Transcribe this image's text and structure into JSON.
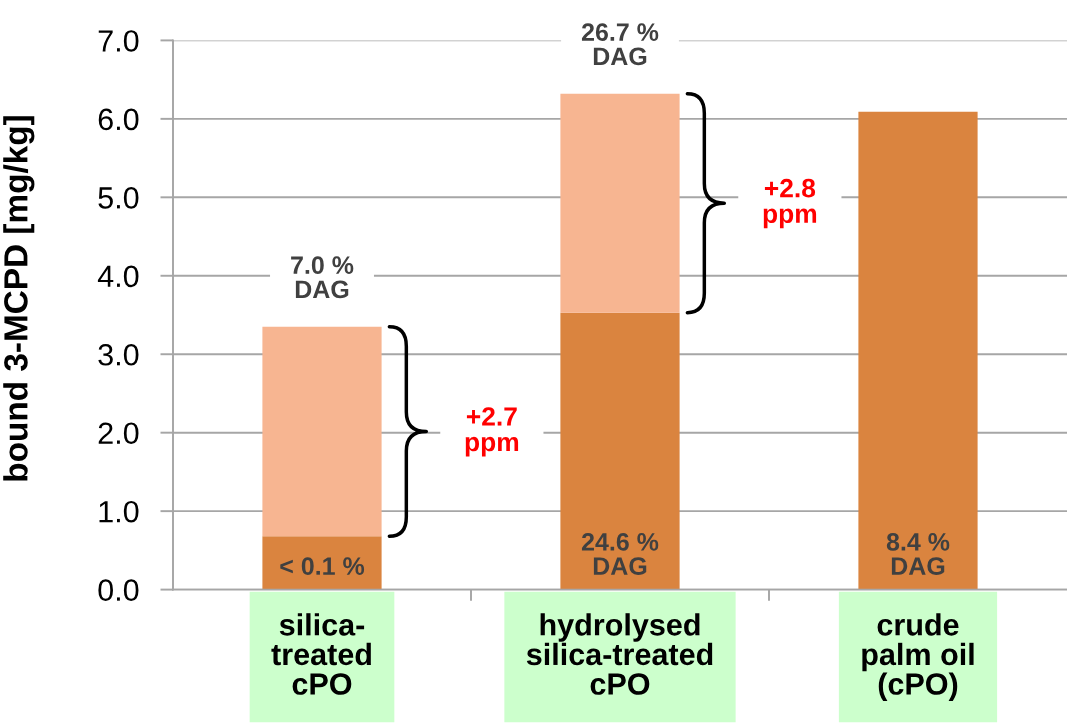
{
  "chart_data": {
    "type": "bar",
    "stacked": true,
    "ylabel": "bound 3-MCPD [mg/kg]",
    "categories": [
      "silica-\ntreated\ncPO",
      "hydrolysed\nsilica-treated\ncPO",
      "crude\npalm oil\n(cPO)"
    ],
    "series": [
      {
        "color": "#da843f",
        "values": [
          0.68,
          3.53,
          6.09
        ]
      },
      {
        "color": "#f7b591",
        "values": [
          2.67,
          2.79,
          null
        ]
      }
    ],
    "ylim": [
      0,
      7
    ],
    "yticks": [
      {
        "value": 0,
        "label": "0.0"
      },
      {
        "value": 1,
        "label": "1.0"
      },
      {
        "value": 2,
        "label": "2.0"
      },
      {
        "value": 3,
        "label": "3.0"
      },
      {
        "value": 4,
        "label": "4.0"
      },
      {
        "value": 5,
        "label": "5.0"
      },
      {
        "value": 6,
        "label": "6.0"
      },
      {
        "value": 7,
        "label": "7.0"
      }
    ],
    "grid": "y",
    "annotations": [
      {
        "text": "7.0 %\nDAG",
        "x": "silica-\ntreated\ncPO",
        "y": 3.35
      },
      {
        "text": "< 0.1 %",
        "x": "silica-\ntreated\ncPO",
        "y": 0
      },
      "+2.7\nppm",
      {
        "text": "26.7 %\nDAG",
        "x": "hydrolysed\nsilica-treated\ncPO",
        "y": 6.32
      },
      {
        "text": "24.6 %\nDAG",
        "x": "hydrolysed\nsilica-treated\ncPO",
        "y": 0
      },
      "+2.8\nppm",
      {
        "text": "8.4 %\nDAG",
        "x": "crude\npalm oil\n(cPO)",
        "y": 0
      }
    ]
  }
}
